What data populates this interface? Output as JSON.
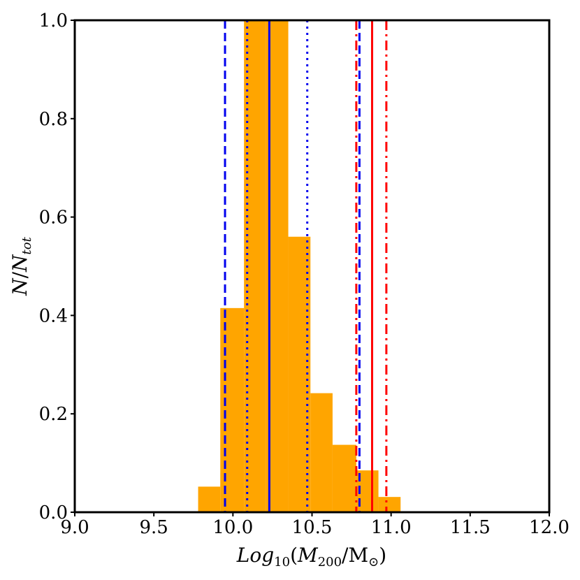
{
  "chart_data": {
    "type": "bar",
    "subtype": "histogram",
    "xlabel_parts": {
      "log": "Log",
      "log_sub": "10",
      "open": "(",
      "m": "M",
      "m_sub": "200",
      "slash": "/M",
      "m_sub2": "⊙",
      "close": ")"
    },
    "ylabel_parts": {
      "n1": "N",
      "slash": "/",
      "n2": "N",
      "n2_sub": "tot"
    },
    "xlim": [
      9.0,
      12.0
    ],
    "ylim": [
      0.0,
      1.0
    ],
    "x_ticks": [
      "9.0",
      "9.5",
      "10.0",
      "10.5",
      "11.0",
      "11.5",
      "12.0"
    ],
    "y_ticks": [
      "0.0",
      "0.2",
      "0.4",
      "0.6",
      "0.8",
      "1.0"
    ],
    "grid": false,
    "bar_color": "#ffa500",
    "bins": [
      {
        "x0": 9.78,
        "x1": 9.92,
        "value": 0.052
      },
      {
        "x0": 9.92,
        "x1": 10.07,
        "value": 0.415
      },
      {
        "x0": 10.07,
        "x1": 10.21,
        "value": 1.0
      },
      {
        "x0": 10.21,
        "x1": 10.35,
        "value": 1.0
      },
      {
        "x0": 10.35,
        "x1": 10.49,
        "value": 0.56
      },
      {
        "x0": 10.49,
        "x1": 10.63,
        "value": 0.242
      },
      {
        "x0": 10.63,
        "x1": 10.78,
        "value": 0.137
      },
      {
        "x0": 10.78,
        "x1": 10.92,
        "value": 0.085
      },
      {
        "x0": 10.92,
        "x1": 11.06,
        "value": 0.031
      }
    ],
    "vlines": [
      {
        "x": 9.95,
        "color": "#0000ee",
        "style": "dashed"
      },
      {
        "x": 10.09,
        "color": "#0000ee",
        "style": "dotted"
      },
      {
        "x": 10.23,
        "color": "#0000ee",
        "style": "solid"
      },
      {
        "x": 10.47,
        "color": "#0000ee",
        "style": "dotted"
      },
      {
        "x": 10.8,
        "color": "#0000ee",
        "style": "dashed"
      },
      {
        "x": 10.78,
        "color": "#ff0000",
        "style": "dashdot"
      },
      {
        "x": 10.88,
        "color": "#ff0000",
        "style": "solid"
      },
      {
        "x": 10.97,
        "color": "#ff0000",
        "style": "dashdot"
      }
    ]
  }
}
